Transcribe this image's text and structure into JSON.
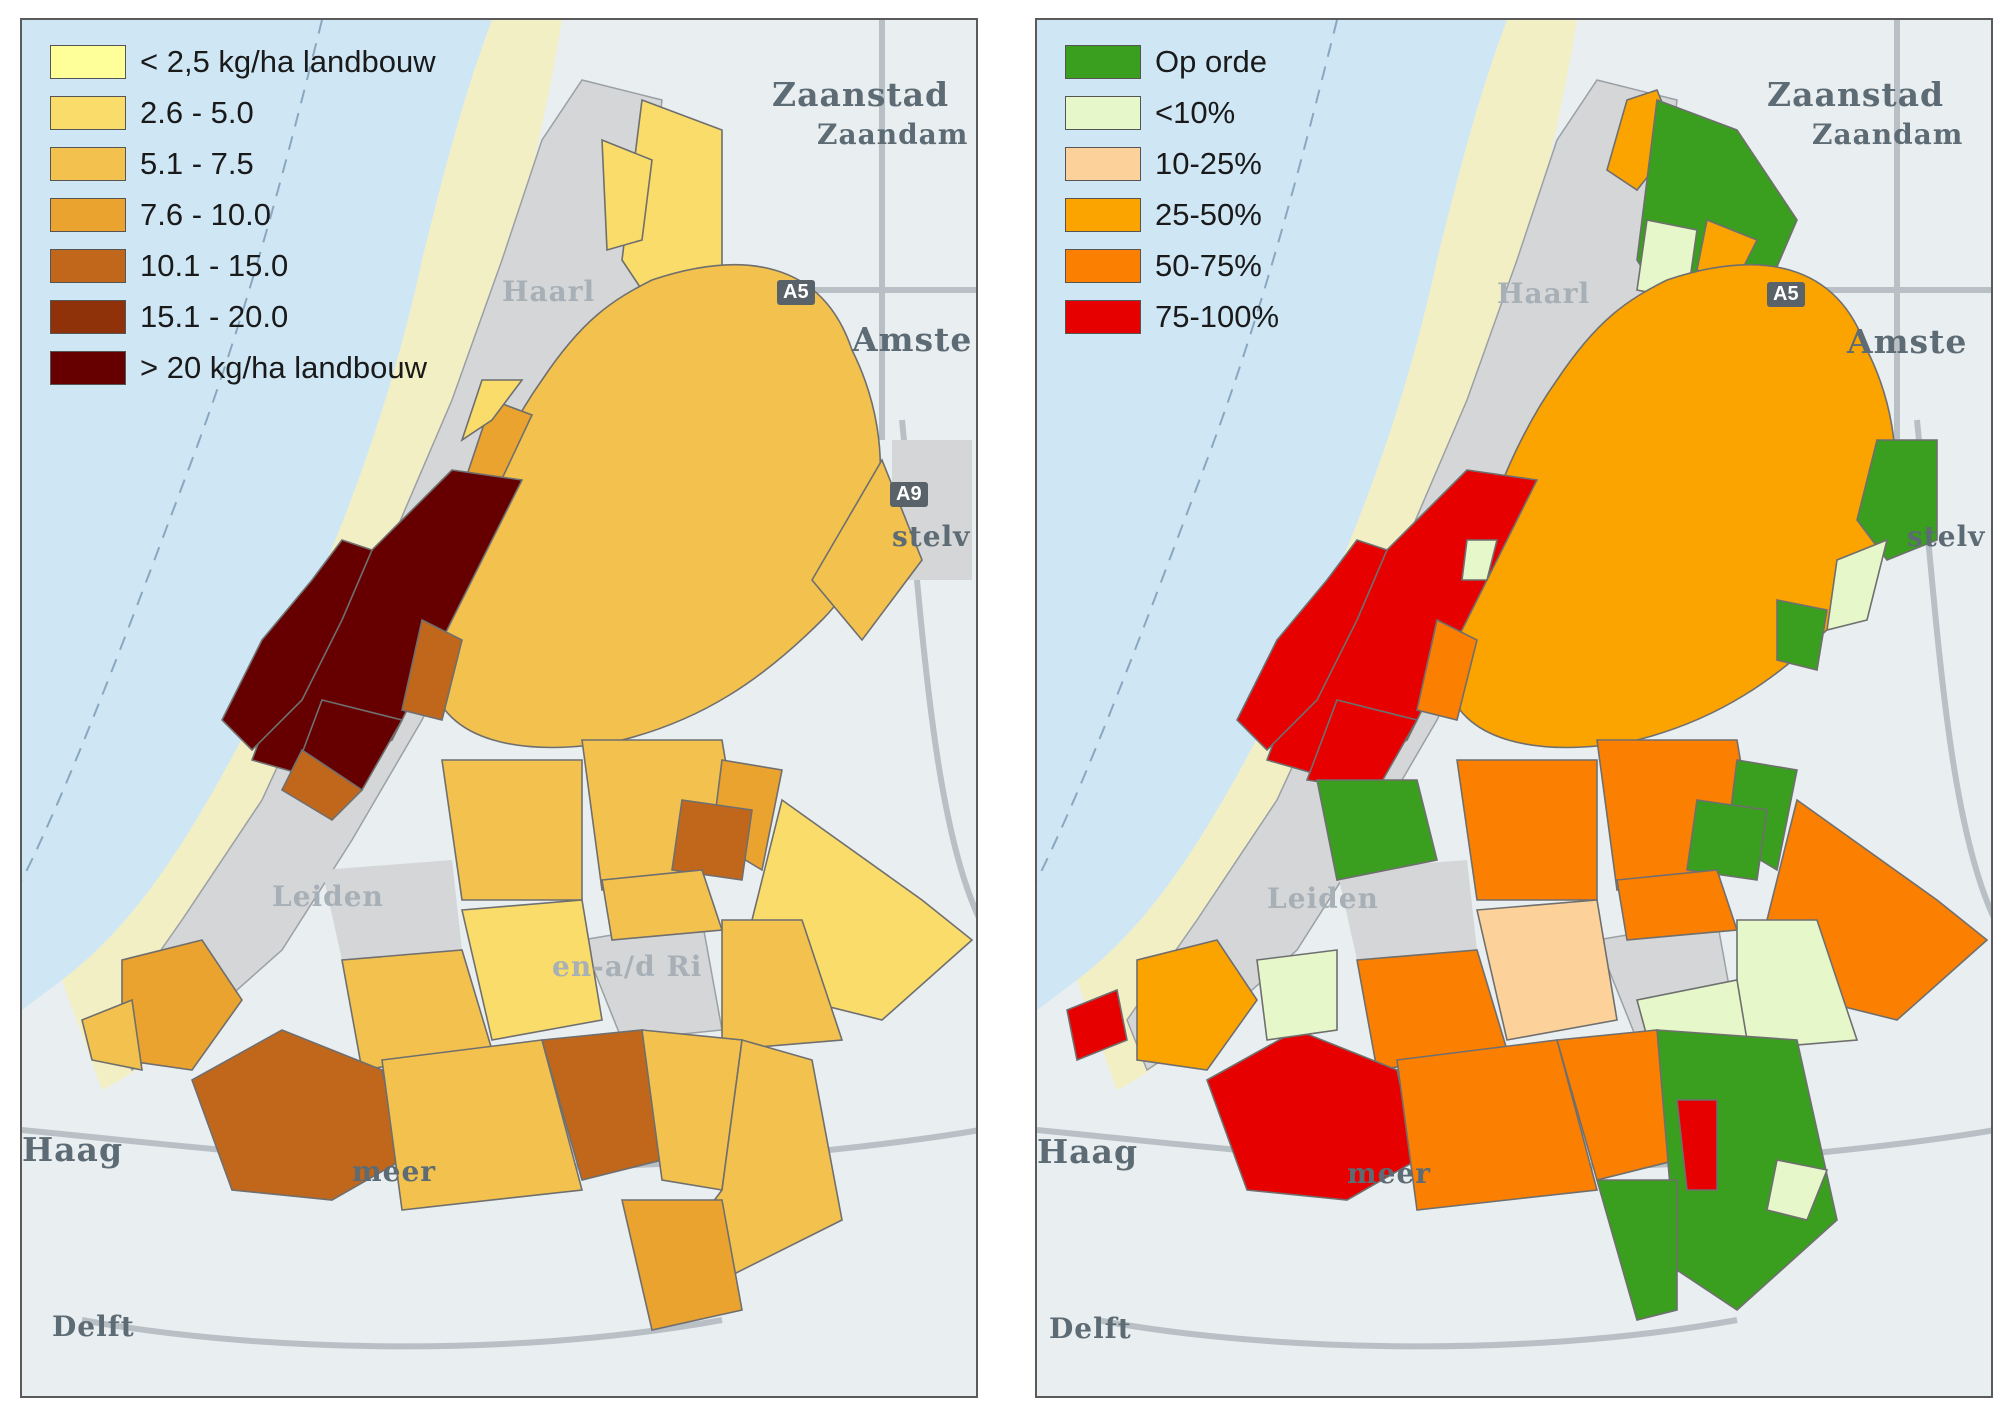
{
  "left_panel": {
    "legend": [
      {
        "label": "< 2,5 kg/ha landbouw",
        "color": "#ffff99"
      },
      {
        "label": "2.6 - 5.0",
        "color": "#f9dc6a"
      },
      {
        "label": "5.1 - 7.5",
        "color": "#f3c24e"
      },
      {
        "label": "7.6 - 10.0",
        "color": "#eaa32e"
      },
      {
        "label": "10.1 - 15.0",
        "color": "#c0671c"
      },
      {
        "label": "15.1 - 20.0",
        "color": "#8f3209"
      },
      {
        "label": "> 20 kg/ha landbouw",
        "color": "#660000"
      }
    ]
  },
  "right_panel": {
    "legend": [
      {
        "label": "Op orde",
        "color": "#3a9e1e"
      },
      {
        "label": "<10%",
        "color": "#e6f7c9"
      },
      {
        "label": "10-25%",
        "color": "#fcd29a"
      },
      {
        "label": "25-50%",
        "color": "#fba400"
      },
      {
        "label": "50-75%",
        "color": "#fb7f00"
      },
      {
        "label": "75-100%",
        "color": "#e60000"
      }
    ]
  },
  "map_labels": {
    "zaanstad": "Zaanstad",
    "zaandam": "Zaandam",
    "highway_a5": "A5",
    "highway_a9": "A9",
    "amsterdam": "Amste",
    "amstelveen": "stelv",
    "haarlem": "Haarl",
    "leiden": "Leiden",
    "den_haag": "Haag",
    "zoetermeer": "meer",
    "delft": "Delft",
    "alphen": "en-a/d Ri"
  },
  "map_colors": {
    "sea": "#cfe6f5",
    "dunes": "#f2efc4",
    "urban": "#d4d6d8",
    "background": "#e9eef0",
    "roads": "#b9c0c5"
  }
}
